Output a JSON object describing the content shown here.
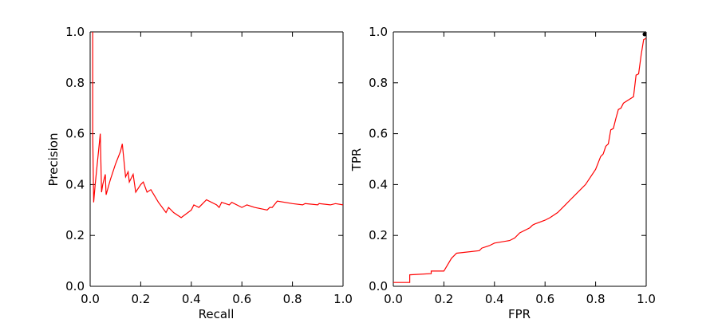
{
  "chart_data": [
    {
      "type": "line",
      "title": "",
      "xlabel": "Recall",
      "ylabel": "Precision",
      "xlim": [
        0.0,
        1.0
      ],
      "ylim": [
        0.0,
        1.0
      ],
      "xticks": [
        "0.0",
        "0.2",
        "0.4",
        "0.6",
        "0.8",
        "1.0"
      ],
      "yticks": [
        "0.0",
        "0.2",
        "0.4",
        "0.6",
        "0.8",
        "1.0"
      ],
      "grid": false,
      "color": "#ff0000",
      "series": [
        {
          "x": [
            0.01,
            0.01,
            0.01,
            0.014,
            0.02,
            0.03,
            0.04,
            0.045,
            0.05,
            0.06,
            0.063,
            0.08,
            0.1,
            0.12,
            0.127,
            0.14,
            0.15,
            0.155,
            0.16,
            0.17,
            0.18,
            0.2,
            0.21,
            0.225,
            0.24,
            0.27,
            0.3,
            0.31,
            0.33,
            0.36,
            0.4,
            0.41,
            0.43,
            0.46,
            0.5,
            0.51,
            0.52,
            0.55,
            0.56,
            0.6,
            0.62,
            0.65,
            0.7,
            0.71,
            0.72,
            0.74,
            0.8,
            0.84,
            0.85,
            0.9,
            0.905,
            0.95,
            0.97,
            1.0
          ],
          "y": [
            1.0,
            0.92,
            0.6,
            0.33,
            0.4,
            0.5,
            0.6,
            0.37,
            0.4,
            0.44,
            0.36,
            0.42,
            0.48,
            0.53,
            0.56,
            0.43,
            0.45,
            0.41,
            0.42,
            0.44,
            0.37,
            0.4,
            0.41,
            0.37,
            0.38,
            0.33,
            0.29,
            0.31,
            0.29,
            0.27,
            0.3,
            0.32,
            0.31,
            0.34,
            0.32,
            0.31,
            0.33,
            0.32,
            0.33,
            0.31,
            0.32,
            0.31,
            0.3,
            0.31,
            0.31,
            0.335,
            0.325,
            0.32,
            0.325,
            0.32,
            0.325,
            0.32,
            0.325,
            0.32
          ]
        }
      ]
    },
    {
      "type": "line",
      "title": "",
      "xlabel": "FPR",
      "ylabel": "TPR",
      "xlim": [
        0.0,
        1.0
      ],
      "ylim": [
        0.0,
        1.0
      ],
      "xticks": [
        "0.0",
        "0.2",
        "0.4",
        "0.6",
        "0.8",
        "1.0"
      ],
      "yticks": [
        "0.0",
        "0.2",
        "0.4",
        "0.6",
        "0.8",
        "1.0"
      ],
      "grid": false,
      "color": "#ff0000",
      "series": [
        {
          "x": [
            0.0,
            0.065,
            0.065,
            0.15,
            0.15,
            0.2,
            0.23,
            0.25,
            0.34,
            0.35,
            0.38,
            0.4,
            0.46,
            0.48,
            0.5,
            0.54,
            0.55,
            0.56,
            0.6,
            0.62,
            0.65,
            0.68,
            0.7,
            0.72,
            0.76,
            0.8,
            0.82,
            0.83,
            0.84,
            0.85,
            0.86,
            0.87,
            0.88,
            0.89,
            0.9,
            0.91,
            0.95,
            0.96,
            0.97,
            0.98,
            0.99,
            1.0
          ],
          "y": [
            0.015,
            0.015,
            0.045,
            0.05,
            0.06,
            0.06,
            0.11,
            0.13,
            0.14,
            0.15,
            0.16,
            0.17,
            0.18,
            0.19,
            0.21,
            0.23,
            0.24,
            0.245,
            0.26,
            0.27,
            0.29,
            0.32,
            0.34,
            0.36,
            0.4,
            0.46,
            0.51,
            0.52,
            0.55,
            0.56,
            0.615,
            0.62,
            0.66,
            0.695,
            0.7,
            0.72,
            0.745,
            0.83,
            0.835,
            0.91,
            0.97,
            0.975
          ]
        }
      ]
    }
  ]
}
